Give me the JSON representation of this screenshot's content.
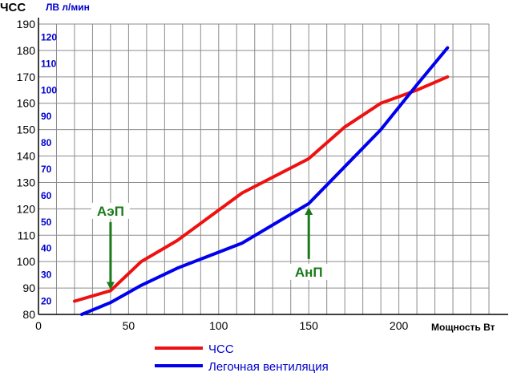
{
  "chart_data": {
    "type": "line",
    "y_title": "ЧСС",
    "y2_title": "ЛВ л/мин",
    "x_title": "Мощность Вт",
    "xlim": [
      0,
      250
    ],
    "ylim": [
      80,
      190
    ],
    "y2lim": [
      15,
      125
    ],
    "x_ticks": [
      0,
      50,
      100,
      150,
      200
    ],
    "y_ticks": [
      80,
      90,
      100,
      110,
      120,
      130,
      140,
      150,
      160,
      170,
      180,
      190
    ],
    "y2_ticks": [
      20,
      30,
      40,
      50,
      60,
      70,
      80,
      90,
      100,
      110,
      120
    ],
    "grid": true,
    "series": [
      {
        "name": "ЧСС",
        "axis": "y",
        "color": "#ee1111",
        "points": [
          {
            "x": 20,
            "y": 85
          },
          {
            "x": 40,
            "y": 89
          },
          {
            "x": 57,
            "y": 100
          },
          {
            "x": 77,
            "y": 108
          },
          {
            "x": 113,
            "y": 126
          },
          {
            "x": 150,
            "y": 139
          },
          {
            "x": 170,
            "y": 151
          },
          {
            "x": 190,
            "y": 160
          },
          {
            "x": 210,
            "y": 165
          },
          {
            "x": 227,
            "y": 170
          }
        ]
      },
      {
        "name": "Легочная вентиляция",
        "axis": "y2",
        "color": "#0000ee",
        "points": [
          {
            "x": 24,
            "y": 15
          },
          {
            "x": 40,
            "y": 19.5
          },
          {
            "x": 57,
            "y": 26
          },
          {
            "x": 77,
            "y": 32.5
          },
          {
            "x": 113,
            "y": 42
          },
          {
            "x": 150,
            "y": 57
          },
          {
            "x": 170,
            "y": 71
          },
          {
            "x": 190,
            "y": 85
          },
          {
            "x": 210,
            "y": 102
          },
          {
            "x": 227,
            "y": 116
          }
        ]
      }
    ],
    "annotations": [
      {
        "label": "АэП",
        "x": 40,
        "y": 89,
        "from_y": 115
      },
      {
        "label": "АнП",
        "x": 150,
        "y": 121,
        "from_y": 101
      }
    ]
  }
}
